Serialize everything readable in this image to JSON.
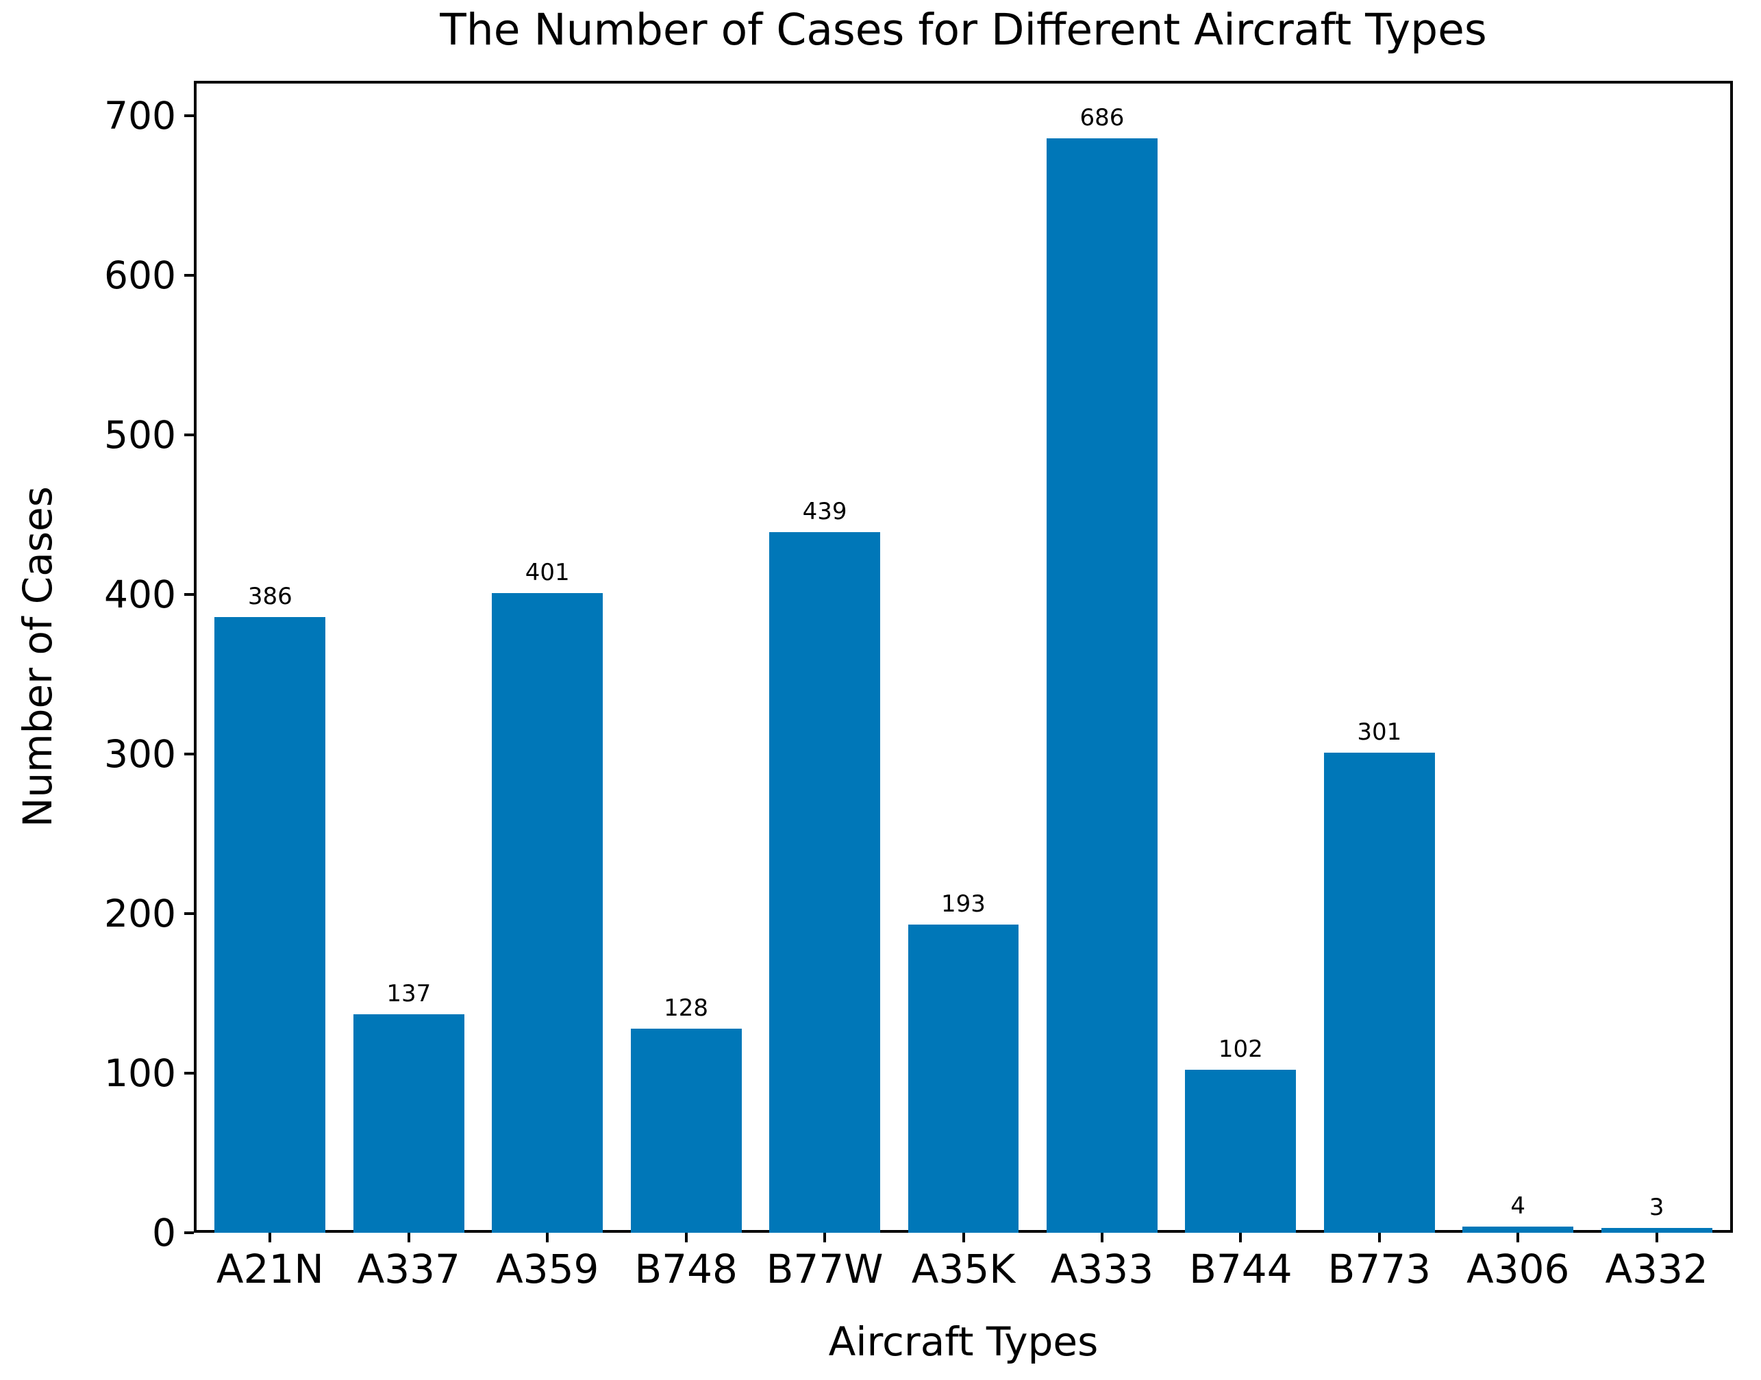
{
  "chart_data": {
    "type": "bar",
    "title": "The Number of Cases for Different Aircraft Types",
    "xlabel": "Aircraft Types",
    "ylabel": "Number of Cases",
    "categories": [
      "A21N",
      "A337",
      "A359",
      "B748",
      "B77W",
      "A35K",
      "A333",
      "B744",
      "B773",
      "A306",
      "A332"
    ],
    "values": [
      386,
      137,
      401,
      128,
      439,
      193,
      686,
      102,
      301,
      4,
      3
    ],
    "bar_labels": [
      "386",
      "137",
      "401",
      "128",
      "439",
      "193",
      "686",
      "102",
      "301",
      "4",
      "3"
    ],
    "yticks": [
      0,
      100,
      200,
      300,
      400,
      500,
      600,
      700
    ],
    "ylim": [
      0,
      722
    ],
    "bar_color": "#0077b8",
    "axis_color": "#000000",
    "text_color": "#000000",
    "background_color": "#ffffff",
    "grid": false,
    "legend": "none"
  }
}
